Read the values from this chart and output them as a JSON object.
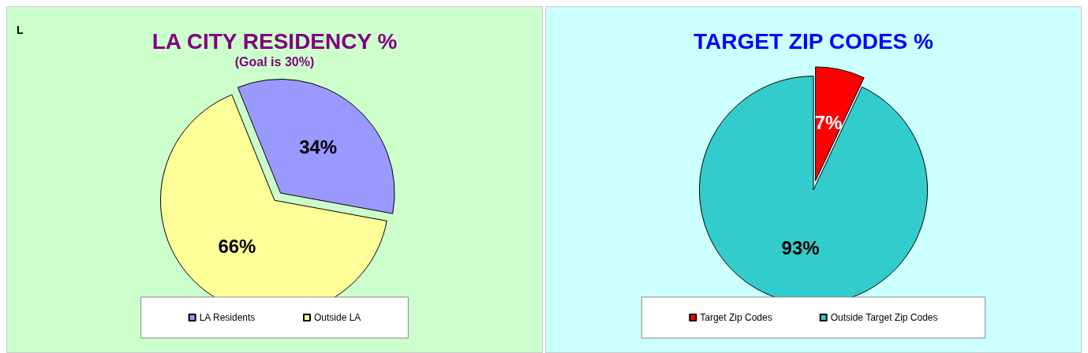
{
  "chart_data": [
    {
      "type": "pie",
      "title": "LA CITY RESIDENCY %",
      "subtitle": "(Goal is 30%)",
      "annotations": [
        "L"
      ],
      "categories": [
        "LA Residents",
        "Outside LA"
      ],
      "values": [
        34,
        66
      ],
      "colors": [
        "#9999ff",
        "#ffff99"
      ],
      "value_labels": [
        "34%",
        "66%"
      ],
      "legend": "bottom"
    },
    {
      "type": "pie",
      "title": "TARGET ZIP CODES %",
      "categories": [
        "Target Zip Codes",
        "Outside Target Zip Codes"
      ],
      "values": [
        7,
        93
      ],
      "colors": [
        "#ff0000",
        "#33cccc"
      ],
      "value_labels": [
        "7%",
        "93%"
      ],
      "legend": "bottom"
    }
  ]
}
